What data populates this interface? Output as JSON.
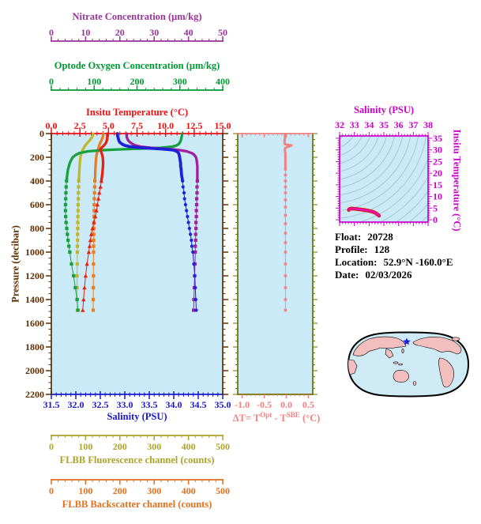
{
  "palette": {
    "nitrate": "#993399",
    "oxygen": "#009933",
    "temperature": "#EE1111",
    "pressure": "#5C2E00",
    "salinity": "#1A1ACC",
    "fluorescence": "#ABA32A",
    "backscatter": "#E1701E",
    "delta": "#F28080",
    "delta_frame": "#6E6E00",
    "ts_frame": "#CC00CC",
    "plot_bg": "#C9EAF6",
    "contour": "#A3BDC5",
    "map_land": "#F2BEBE",
    "map_ocean": "#CDEAF5",
    "star": "#1A1AEE",
    "series": {
      "nitrate": "#A020A0",
      "oxygen": "#17A03C",
      "temperature": "#E82010",
      "salinity": "#2020D8",
      "fluorescence": "#C3B42E",
      "backscatter": "#E67F24",
      "delta": "#F28080",
      "ts_under": "#E01010",
      "ts_over": "#E612BE"
    }
  },
  "info_panel": {
    "rows": [
      {
        "label": "Float:",
        "value": "20728"
      },
      {
        "label": "Profile:",
        "value": "128"
      },
      {
        "label": "Location:",
        "value": "52.9°N  -160.0°E"
      },
      {
        "label": "Date:",
        "value": "02/03/2026"
      }
    ]
  },
  "map": {
    "float_marker": "star"
  },
  "chart_data": [
    {
      "id": "profile-plot",
      "type": "line",
      "y_axis": {
        "label": "Pressure (decibar)",
        "range": [
          0,
          2200
        ],
        "major_tick": 200,
        "minor_tick": 50,
        "tick_values": [
          0,
          200,
          400,
          600,
          800,
          1000,
          1200,
          1400,
          1600,
          1800,
          2000,
          2200
        ],
        "tick_labels": [
          "0",
          "200",
          "400",
          "600",
          "800",
          "1000",
          "1200",
          "1400",
          "1600",
          "1800",
          "2000",
          "2200"
        ]
      },
      "x_axes": [
        {
          "id": "nitrate",
          "label": "Nitrate Concentration (μm/kg)",
          "range": [
            0,
            50
          ],
          "minor_tick": 2,
          "tick_values": [
            0,
            10,
            20,
            30,
            40,
            50
          ],
          "tick_labels": [
            "0",
            "10",
            "20",
            "30",
            "40",
            "50"
          ]
        },
        {
          "id": "oxygen",
          "label": "Optode Oxygen Concentration (μm/kg)",
          "range": [
            0,
            400
          ],
          "minor_tick": 20,
          "tick_values": [
            0,
            100,
            200,
            300,
            400
          ],
          "tick_labels": [
            "0",
            "100",
            "200",
            "300",
            "400"
          ]
        },
        {
          "id": "temperature",
          "label": "Insitu Temperature (°C)",
          "range": [
            0,
            15
          ],
          "minor_tick": 0.5,
          "tick_values": [
            0,
            2.5,
            5,
            7.5,
            10,
            12.5,
            15
          ],
          "tick_labels": [
            "0.0",
            "2.5",
            "5.0",
            "7.5",
            "10.0",
            "12.5",
            "15.0"
          ]
        },
        {
          "id": "salinity",
          "label": "Salinity (PSU)",
          "range": [
            31.5,
            35.0
          ],
          "minor_tick": 0.1,
          "tick_values": [
            31.5,
            32,
            32.5,
            33,
            33.5,
            34,
            34.5,
            35
          ],
          "tick_labels": [
            "31.5",
            "32.0",
            "32.5",
            "33.0",
            "33.5",
            "34.0",
            "34.5",
            "35.0"
          ]
        },
        {
          "id": "fluorescence",
          "label": "FLBB Fluorescence channel (counts)",
          "range": [
            0,
            500
          ],
          "minor_tick": 20,
          "tick_values": [
            0,
            100,
            200,
            300,
            400,
            500
          ],
          "tick_labels": [
            "0",
            "100",
            "200",
            "300",
            "400",
            "500"
          ]
        },
        {
          "id": "backscatter",
          "label": "FLBB Backscatter channel (counts)",
          "range": [
            0,
            500
          ],
          "minor_tick": 20,
          "tick_values": [
            0,
            100,
            200,
            300,
            400,
            500
          ],
          "tick_labels": [
            "0",
            "100",
            "200",
            "300",
            "400",
            "500"
          ]
        }
      ],
      "pressure_levels": [
        0,
        15,
        30,
        45,
        60,
        75,
        90,
        100,
        110,
        120,
        125,
        130,
        135,
        140,
        150,
        165,
        180,
        200,
        225,
        250,
        275,
        300,
        350,
        400,
        450,
        500,
        550,
        600,
        650,
        700,
        750,
        800,
        850,
        900,
        950,
        1000,
        1100,
        1200,
        1300,
        1400,
        1490
      ],
      "series": [
        {
          "name": "Optode Oxygen",
          "axis": "oxygen",
          "marker": "square",
          "values": [
            305,
            305,
            304,
            303,
            302,
            300,
            297,
            292,
            283,
            255,
            225,
            185,
            150,
            120,
            85,
            65,
            57,
            50,
            46,
            43,
            41,
            39,
            37,
            35.5,
            34.5,
            34,
            33.5,
            33,
            33,
            33.5,
            34.5,
            36,
            37.5,
            39,
            41,
            43,
            47,
            52,
            56,
            60,
            62
          ]
        },
        {
          "name": "Nitrate",
          "axis": "nitrate",
          "marker": "square",
          "values": [
            22,
            22,
            22,
            22.2,
            22.5,
            23,
            23.8,
            24.5,
            26,
            29,
            31.5,
            34,
            36,
            37.5,
            39.5,
            41,
            41.7,
            42.2,
            42.4,
            42.5,
            42.6,
            42.6,
            42.6,
            42.6,
            42.5,
            42.5,
            42.4,
            42.4,
            42.3,
            42.3,
            42.2,
            42.2,
            42.1,
            42.1,
            42,
            42,
            41.9,
            41.8,
            41.7,
            41.6,
            41.5
          ]
        },
        {
          "name": "Insitu Temperature",
          "axis": "temperature",
          "marker": "triangle",
          "values": [
            4.9,
            4.9,
            4.9,
            4.88,
            4.85,
            4.8,
            4.7,
            4.6,
            4.5,
            4.4,
            4.35,
            4.3,
            4.3,
            4.3,
            4.35,
            4.4,
            4.45,
            4.5,
            4.52,
            4.53,
            4.52,
            4.5,
            4.45,
            4.38,
            4.3,
            4.2,
            4.12,
            4.03,
            3.95,
            3.85,
            3.73,
            3.6,
            3.5,
            3.42,
            3.35,
            3.28,
            3.12,
            3,
            2.9,
            2.82,
            2.75
          ]
        },
        {
          "name": "Salinity",
          "axis": "salinity",
          "marker": "circle",
          "values": [
            32.85,
            32.85,
            32.86,
            32.87,
            32.88,
            32.9,
            32.95,
            33,
            33.1,
            33.35,
            33.55,
            33.75,
            33.9,
            34,
            34.06,
            34.1,
            34.11,
            34.12,
            34.13,
            34.14,
            34.14,
            34.15,
            34.16,
            34.18,
            34.19,
            34.21,
            34.22,
            34.24,
            34.26,
            34.28,
            34.3,
            34.32,
            34.34,
            34.36,
            34.37,
            34.39,
            34.41,
            34.43,
            34.44,
            34.45,
            34.46
          ]
        },
        {
          "name": "FLBB Fluorescence",
          "axis": "fluorescence",
          "marker": "square",
          "values": [
            122,
            121,
            119,
            115,
            111,
            106,
            102,
            99,
            97,
            95,
            94,
            93,
            92,
            91,
            90,
            88,
            86,
            85,
            84,
            83,
            82.5,
            82,
            81,
            80,
            79.5,
            79,
            78.5,
            78,
            78,
            77.5,
            77,
            77,
            76.5,
            76.5,
            76,
            76,
            75.5,
            75,
            75,
            75.5,
            76
          ]
        },
        {
          "name": "FLBB Backscatter",
          "axis": "backscatter",
          "marker": "square",
          "values": [
            152,
            151,
            150,
            148,
            146,
            143,
            141,
            140,
            139,
            138,
            137,
            137,
            136,
            136,
            135,
            133,
            132,
            131,
            130,
            129.5,
            129,
            128.5,
            128,
            127,
            126.5,
            126,
            125.5,
            125,
            125,
            124.5,
            124,
            124,
            123.8,
            123.5,
            123.3,
            123,
            123,
            122.8,
            122.5,
            122.3,
            122
          ]
        }
      ]
    },
    {
      "id": "delta-t-plot",
      "type": "line",
      "x_axis": {
        "title_parts": {
          "prefix": "ΔT= T",
          "sup1": "Opt",
          "mid": " - T",
          "sup2": "SBE",
          "suffix": " (°C)"
        },
        "range": [
          -1.1,
          0.6
        ],
        "minor_tick": 0.1,
        "tick_values": [
          -1.0,
          -0.5,
          0.0,
          0.5
        ],
        "tick_labels": [
          "-1.0",
          "-0.5",
          "0.0",
          "0.5"
        ]
      },
      "pressure_levels": [
        0,
        15,
        30,
        45,
        60,
        75,
        90,
        100,
        110,
        120,
        130,
        140,
        150,
        165,
        180,
        200,
        225,
        250,
        300,
        350,
        400,
        450,
        500,
        560,
        620,
        690,
        760,
        840,
        920,
        1000,
        1100,
        1200,
        1300,
        1400,
        1490
      ],
      "values": [
        -0.03,
        -0.03,
        -0.03,
        -0.03,
        -0.04,
        -0.04,
        -0.03,
        0.12,
        0.05,
        -0.02,
        -0.03,
        -0.03,
        -0.03,
        -0.02,
        -0.02,
        -0.02,
        -0.02,
        -0.02,
        -0.02,
        -0.02,
        -0.02,
        -0.02,
        -0.02,
        -0.02,
        -0.02,
        -0.02,
        -0.02,
        -0.02,
        -0.02,
        -0.02,
        -0.02,
        -0.02,
        -0.02,
        -0.02,
        -0.02
      ]
    },
    {
      "id": "ts-diagram",
      "type": "line",
      "x_axis": {
        "label": "Salinity (PSU)",
        "range": [
          32,
          38
        ],
        "minor_tick": 0.2,
        "tick_values": [
          32,
          33,
          34,
          35,
          36,
          37,
          38
        ],
        "tick_labels": [
          "32",
          "33",
          "34",
          "35",
          "36",
          "37",
          "38"
        ]
      },
      "y_axis": {
        "label": "Insitu Temperature (°C)",
        "range": [
          -1,
          36
        ],
        "minor_tick": 1,
        "tick_values": [
          0,
          5,
          10,
          15,
          20,
          25,
          30,
          35
        ],
        "tick_labels": [
          "0",
          "5",
          "10",
          "15",
          "20",
          "25",
          "30",
          "35"
        ]
      },
      "isopycnal_contour_count": 19,
      "curve": {
        "salinity": [
          32.62,
          32.66,
          32.72,
          32.85,
          32.95,
          33.1,
          33.3,
          33.5,
          33.7,
          33.9,
          34.05,
          34.18,
          34.28,
          34.36,
          34.42,
          34.47,
          34.52,
          34.58,
          34.63,
          34.67
        ],
        "temperature": [
          4.2,
          4.55,
          4.72,
          4.78,
          4.75,
          4.65,
          4.5,
          4.35,
          4.15,
          3.95,
          3.75,
          3.55,
          3.35,
          3.15,
          2.95,
          2.75,
          2.5,
          2.25,
          2.0,
          1.75
        ]
      }
    }
  ]
}
